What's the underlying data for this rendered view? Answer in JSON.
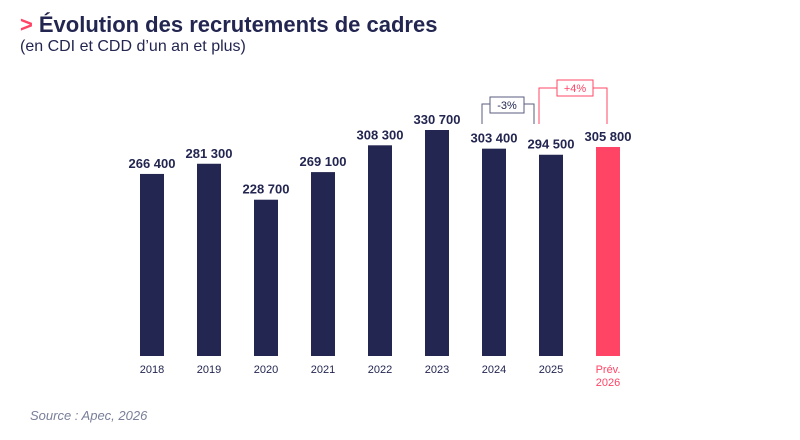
{
  "chart_data": {
    "type": "bar",
    "title": "Évolution des recrutements de cadres",
    "title_marker": ">",
    "subtitle": "(en CDI et CDD d’un an et plus)",
    "categories": [
      "2018",
      "2019",
      "2020",
      "2021",
      "2022",
      "2023",
      "2024",
      "2025",
      "Prév. 2026"
    ],
    "values": [
      266400,
      281300,
      228700,
      269100,
      308300,
      330700,
      303400,
      294500,
      305800
    ],
    "value_labels": [
      "266 400",
      "281 300",
      "228 700",
      "269 100",
      "308 300",
      "330 700",
      "303 400",
      "294 500",
      "305 800"
    ],
    "forecast_index": 8,
    "annotations": [
      {
        "from": "2024",
        "to": "2025",
        "label": "-3%"
      },
      {
        "from": "2025",
        "to": "Prév. 2026",
        "label": "+4%"
      }
    ],
    "ylim": [
      0,
      330700
    ],
    "grid": false,
    "colors": {
      "bar": "#232650",
      "forecast": "#ff4466",
      "text": "#232650"
    }
  },
  "source": "Source : Apec, 2026"
}
